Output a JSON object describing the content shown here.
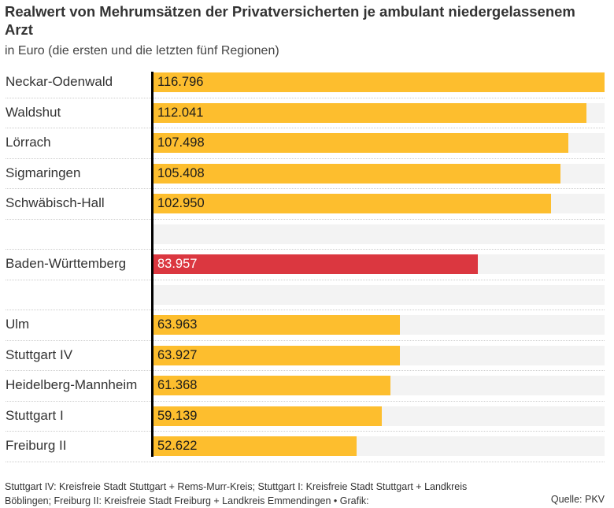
{
  "chart_data": {
    "type": "bar",
    "orientation": "horizontal",
    "title": "Realwert von Mehrumsätzen der Privatversicherten je ambulant niedergelassenem Arzt",
    "subtitle": "in Euro (die ersten und die letzten fünf Regionen)",
    "xlabel": "",
    "ylabel": "",
    "xlim": [
      0,
      116.796
    ],
    "grid": false,
    "legend": "none",
    "categories": [
      "Neckar-Odenwald",
      "Waldshut",
      "Lörrach",
      "Sigmaringen",
      "Schwäbisch-Hall",
      "",
      "Baden-Württemberg",
      "",
      "Ulm",
      "Stuttgart IV",
      "Heidelberg-Mannheim",
      "Stuttgart I",
      "Freiburg II"
    ],
    "values": [
      116.796,
      112.041,
      107.498,
      105.408,
      102.95,
      null,
      83.957,
      null,
      63.963,
      63.927,
      61.368,
      59.139,
      52.622
    ],
    "value_labels": [
      "116.796",
      "112.041",
      "107.498",
      "105.408",
      "102.950",
      "",
      "83.957",
      "",
      "63.963",
      "63.927",
      "61.368",
      "59.139",
      "52.622"
    ],
    "highlight": [
      false,
      false,
      false,
      false,
      false,
      false,
      true,
      false,
      false,
      false,
      false,
      false,
      false
    ],
    "colors": {
      "bar": "#fdbe2e",
      "highlight": "#db3740",
      "track": "#f3f3f3",
      "axis": "#000000"
    }
  },
  "footer": {
    "note": "Stuttgart IV: Kreisfreie Stadt Stuttgart + Rems-Murr-Kreis; Stuttgart I: Kreisfreie Stadt Stuttgart + Landkreis Böblingen; Freiburg II: Kreisfreie Stadt Freiburg + Landkreis Emmendingen • Grafik:",
    "source": "Quelle: PKV"
  }
}
